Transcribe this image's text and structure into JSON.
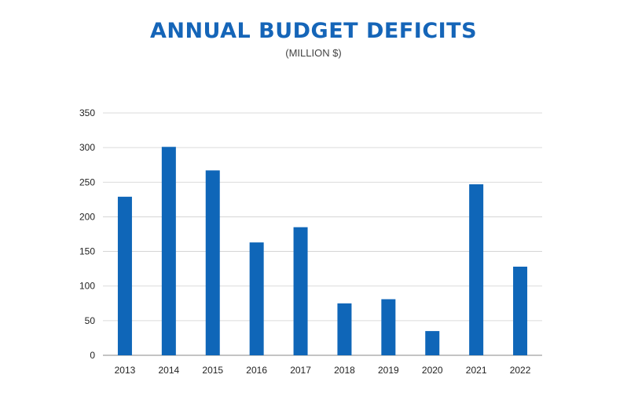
{
  "title": "ANNUAL BUDGET DEFICITS",
  "subtitle": "(MILLION $)",
  "colors": {
    "bar": "#0f66b8",
    "title": "#1565b8",
    "grid": "#cfcfcf",
    "axis": "#888888"
  },
  "chart_data": {
    "type": "bar",
    "title": "ANNUAL BUDGET DEFICITS",
    "subtitle": "(MILLION $)",
    "xlabel": "",
    "ylabel": "",
    "categories": [
      "2013",
      "2014",
      "2015",
      "2016",
      "2017",
      "2018",
      "2019",
      "2020",
      "2021",
      "2022"
    ],
    "values": [
      229,
      301,
      267,
      163,
      185,
      75,
      81,
      35,
      247,
      128
    ],
    "ylim": [
      0,
      350
    ],
    "yticks": [
      "0",
      "50",
      "100",
      "150",
      "200",
      "250",
      "300",
      "350"
    ],
    "grid": true,
    "legend": "none"
  }
}
